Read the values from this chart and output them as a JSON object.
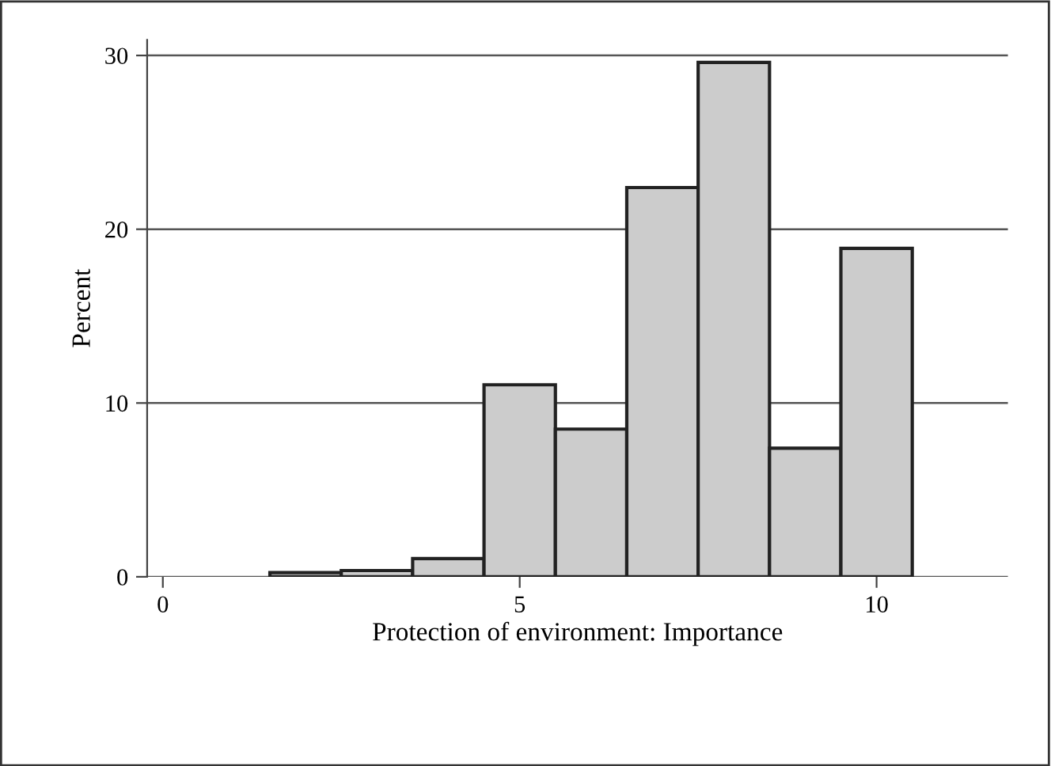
{
  "chart_data": {
    "type": "histogram",
    "xlabel": "Protection of environment: Importance",
    "ylabel": "Percent",
    "bins": [
      1.5,
      2.5,
      3.5,
      4.5,
      5.5,
      6.5,
      7.5,
      8.5,
      9.5,
      10.5
    ],
    "values": [
      0.24,
      0.36,
      1.05,
      11.05,
      8.5,
      22.4,
      29.6,
      7.4,
      18.9
    ],
    "color": "#cccccc",
    "xlim": [
      -0.22,
      11.84
    ],
    "xticks": [
      0,
      5,
      10
    ],
    "ylim": [
      0,
      30.9
    ],
    "yticks": [
      0,
      10,
      20,
      30
    ],
    "grid": "y"
  }
}
